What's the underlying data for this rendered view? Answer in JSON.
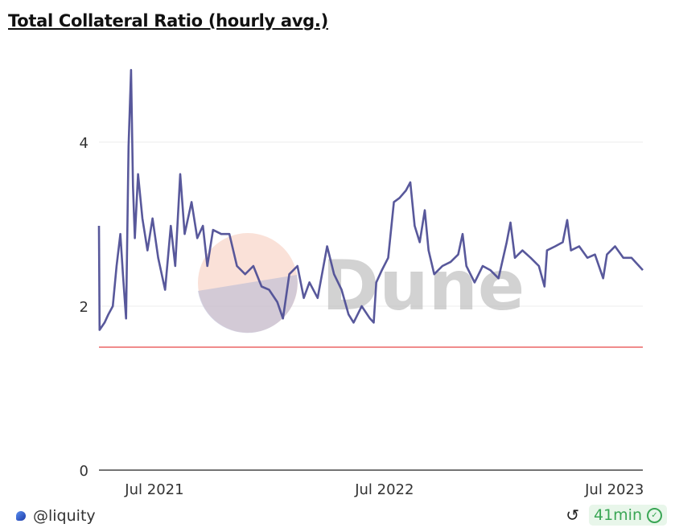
{
  "title": "Total Collateral Ratio (hourly avg.)",
  "footer": {
    "author": "@liquity",
    "refresh_icon": "refresh-icon",
    "age": "41min",
    "status_icon": "verified-check-icon"
  },
  "watermark": "Dune",
  "chart_data": {
    "type": "line",
    "title": "Total Collateral Ratio (hourly avg.)",
    "xlabel": "",
    "ylabel": "",
    "xlim": [
      "2021-04-04",
      "2023-08-15"
    ],
    "ylim": [
      0,
      4.95
    ],
    "grid": true,
    "x_ticks": [
      {
        "date": "2021-07-01",
        "label": "Jul 2021"
      },
      {
        "date": "2022-07-01",
        "label": "Jul 2022"
      },
      {
        "date": "2023-07-01",
        "label": "Jul 2023"
      }
    ],
    "y_ticks": [
      {
        "value": 0,
        "label": "0"
      },
      {
        "value": 2,
        "label": "2"
      },
      {
        "value": 4,
        "label": "4"
      }
    ],
    "series": [
      {
        "color": "#4f4f96",
        "points": [
          [
            "2021-04-04",
            2.98
          ],
          [
            "2021-04-05",
            1.71
          ],
          [
            "2021-04-13",
            1.8
          ],
          [
            "2021-04-19",
            1.9
          ],
          [
            "2021-04-26",
            2.0
          ],
          [
            "2021-05-02",
            2.49
          ],
          [
            "2021-05-08",
            2.88
          ],
          [
            "2021-05-12",
            2.39
          ],
          [
            "2021-05-17",
            1.85
          ],
          [
            "2021-05-21",
            3.95
          ],
          [
            "2021-05-25",
            4.88
          ],
          [
            "2021-05-28",
            3.46
          ],
          [
            "2021-05-31",
            2.83
          ],
          [
            "2021-06-05",
            3.61
          ],
          [
            "2021-06-12",
            3.07
          ],
          [
            "2021-06-20",
            2.68
          ],
          [
            "2021-06-28",
            3.07
          ],
          [
            "2021-07-07",
            2.59
          ],
          [
            "2021-07-18",
            2.2
          ],
          [
            "2021-07-27",
            2.98
          ],
          [
            "2021-08-03",
            2.49
          ],
          [
            "2021-08-11",
            3.61
          ],
          [
            "2021-08-18",
            2.88
          ],
          [
            "2021-08-29",
            3.27
          ],
          [
            "2021-09-07",
            2.83
          ],
          [
            "2021-09-16",
            2.98
          ],
          [
            "2021-09-23",
            2.49
          ],
          [
            "2021-10-02",
            2.93
          ],
          [
            "2021-10-15",
            2.88
          ],
          [
            "2021-10-28",
            2.88
          ],
          [
            "2021-11-09",
            2.49
          ],
          [
            "2021-11-22",
            2.39
          ],
          [
            "2021-12-05",
            2.49
          ],
          [
            "2021-12-18",
            2.24
          ],
          [
            "2021-12-30",
            2.2
          ],
          [
            "2022-01-12",
            2.05
          ],
          [
            "2022-01-21",
            1.85
          ],
          [
            "2022-01-31",
            2.39
          ],
          [
            "2022-02-13",
            2.49
          ],
          [
            "2022-02-23",
            2.1
          ],
          [
            "2022-03-04",
            2.29
          ],
          [
            "2022-03-17",
            2.1
          ],
          [
            "2022-04-01",
            2.73
          ],
          [
            "2022-04-12",
            2.39
          ],
          [
            "2022-04-24",
            2.2
          ],
          [
            "2022-05-05",
            1.9
          ],
          [
            "2022-05-13",
            1.8
          ],
          [
            "2022-05-26",
            2.0
          ],
          [
            "2022-06-08",
            1.85
          ],
          [
            "2022-06-14",
            1.8
          ],
          [
            "2022-06-18",
            2.29
          ],
          [
            "2022-06-27",
            2.44
          ],
          [
            "2022-07-07",
            2.59
          ],
          [
            "2022-07-16",
            3.27
          ],
          [
            "2022-07-25",
            3.32
          ],
          [
            "2022-08-04",
            3.41
          ],
          [
            "2022-08-11",
            3.51
          ],
          [
            "2022-08-18",
            2.98
          ],
          [
            "2022-08-26",
            2.78
          ],
          [
            "2022-09-03",
            3.17
          ],
          [
            "2022-09-09",
            2.68
          ],
          [
            "2022-09-18",
            2.39
          ],
          [
            "2022-10-01",
            2.49
          ],
          [
            "2022-10-14",
            2.54
          ],
          [
            "2022-10-26",
            2.63
          ],
          [
            "2022-11-02",
            2.88
          ],
          [
            "2022-11-08",
            2.49
          ],
          [
            "2022-11-21",
            2.29
          ],
          [
            "2022-12-04",
            2.49
          ],
          [
            "2022-12-16",
            2.44
          ],
          [
            "2022-12-29",
            2.34
          ],
          [
            "2023-01-11",
            2.78
          ],
          [
            "2023-01-17",
            3.02
          ],
          [
            "2023-01-24",
            2.59
          ],
          [
            "2023-02-05",
            2.68
          ],
          [
            "2023-02-18",
            2.59
          ],
          [
            "2023-03-03",
            2.49
          ],
          [
            "2023-03-12",
            2.24
          ],
          [
            "2023-03-16",
            2.68
          ],
          [
            "2023-03-29",
            2.73
          ],
          [
            "2023-04-10",
            2.78
          ],
          [
            "2023-04-17",
            3.05
          ],
          [
            "2023-04-23",
            2.68
          ],
          [
            "2023-05-06",
            2.73
          ],
          [
            "2023-05-19",
            2.59
          ],
          [
            "2023-05-31",
            2.63
          ],
          [
            "2023-06-13",
            2.34
          ],
          [
            "2023-06-19",
            2.63
          ],
          [
            "2023-07-02",
            2.73
          ],
          [
            "2023-07-15",
            2.59
          ],
          [
            "2023-07-28",
            2.59
          ],
          [
            "2023-08-15",
            2.44
          ]
        ]
      },
      {
        "color": "#f08c8c",
        "points": [
          [
            "2021-04-04",
            1.5
          ],
          [
            "2023-08-15",
            1.5
          ]
        ]
      }
    ]
  }
}
